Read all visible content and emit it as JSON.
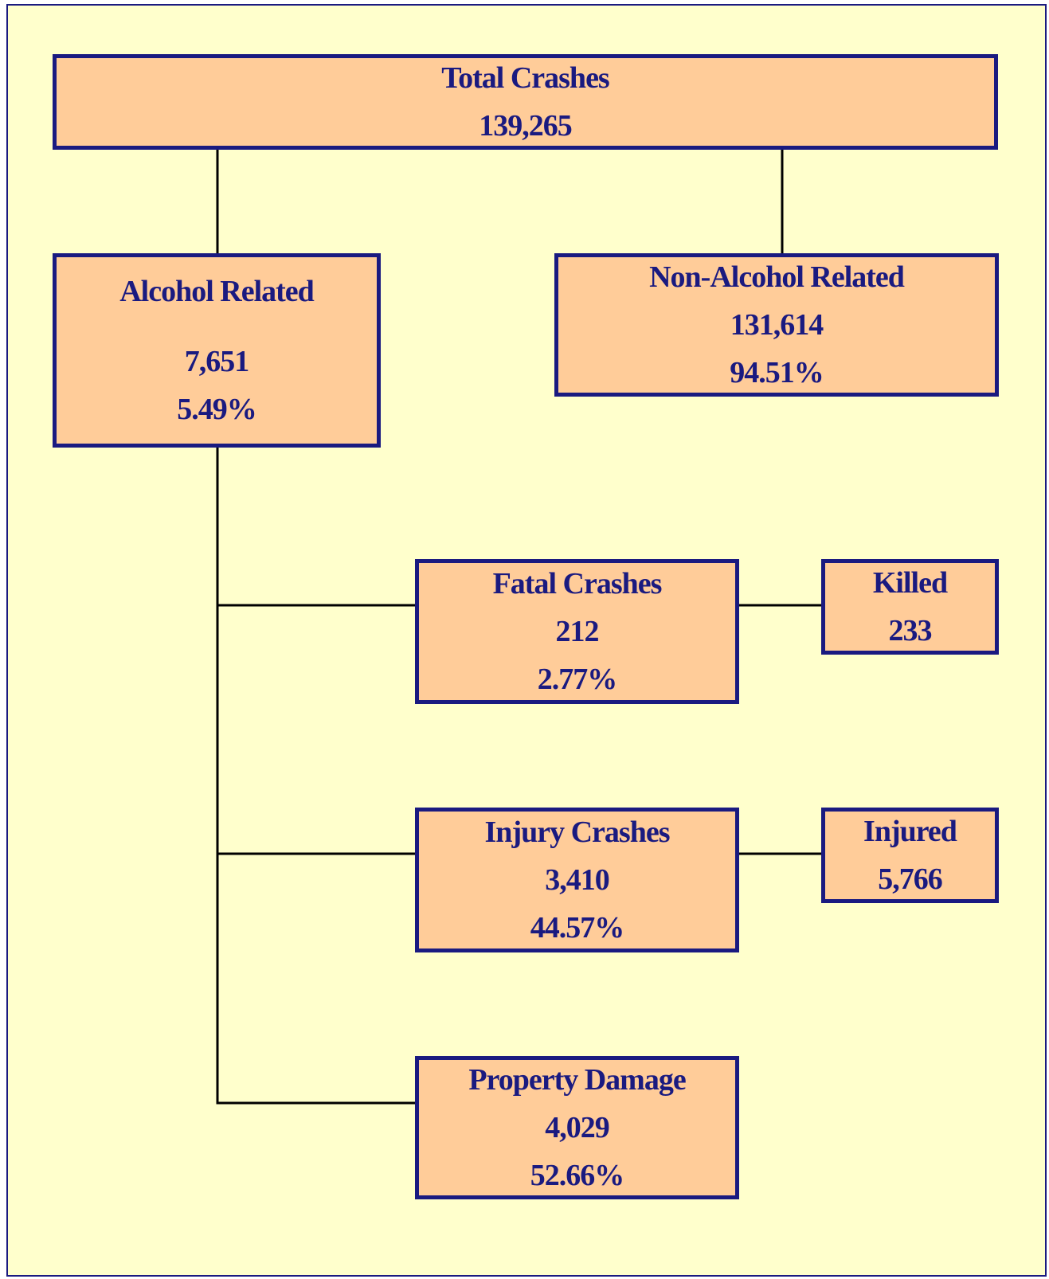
{
  "nodes": [
    {
      "label": "Total Crashes",
      "value": "139,265"
    },
    {
      "label": "Alcohol Related",
      "value": "7,651",
      "percent": "5.49%"
    },
    {
      "label": "Non-Alcohol Related",
      "value": "131,614",
      "percent": "94.51%"
    },
    {
      "label": "Fatal Crashes",
      "value": "212",
      "percent": "2.77%"
    },
    {
      "label": "Killed",
      "value": "233"
    },
    {
      "label": "Injury Crashes",
      "value": "3,410",
      "percent": "44.57%"
    },
    {
      "label": "Injured",
      "value": "5,766"
    },
    {
      "label": "Property Damage",
      "value": "4,029",
      "percent": "52.66%"
    }
  ]
}
